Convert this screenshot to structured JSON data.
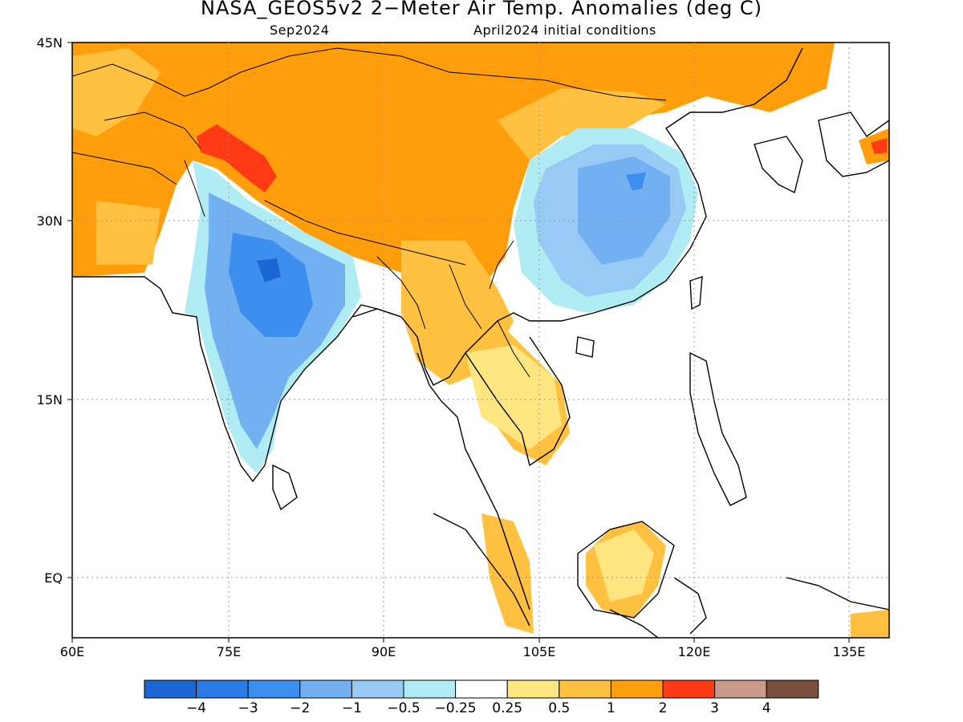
{
  "title": "NASA_GEOS5v2 2−Meter Air Temp. Anomalies (deg C)",
  "subtitle_left": "Sep2024",
  "subtitle_right": "April2024 initial conditions",
  "lat_ticks": [
    "45N",
    "30N",
    "15N",
    "EQ"
  ],
  "lon_ticks": [
    "60E",
    "75E",
    "90E",
    "105E",
    "120E",
    "135E"
  ],
  "colorbar": {
    "colors": [
      "#1c66d4",
      "#2a7ae8",
      "#3d8fef",
      "#72b0f2",
      "#97cbf6",
      "#b0ecf4",
      "#ffffff",
      "#ffe680",
      "#ffc13f",
      "#ff9e0a",
      "#ff3a14",
      "#c9998a",
      "#7a4f3d"
    ],
    "labels": [
      "−4",
      "−3",
      "−2",
      "−1",
      "−0.5",
      "−0.25",
      "0.25",
      "0.5",
      "1",
      "2",
      "3",
      "4"
    ]
  }
}
